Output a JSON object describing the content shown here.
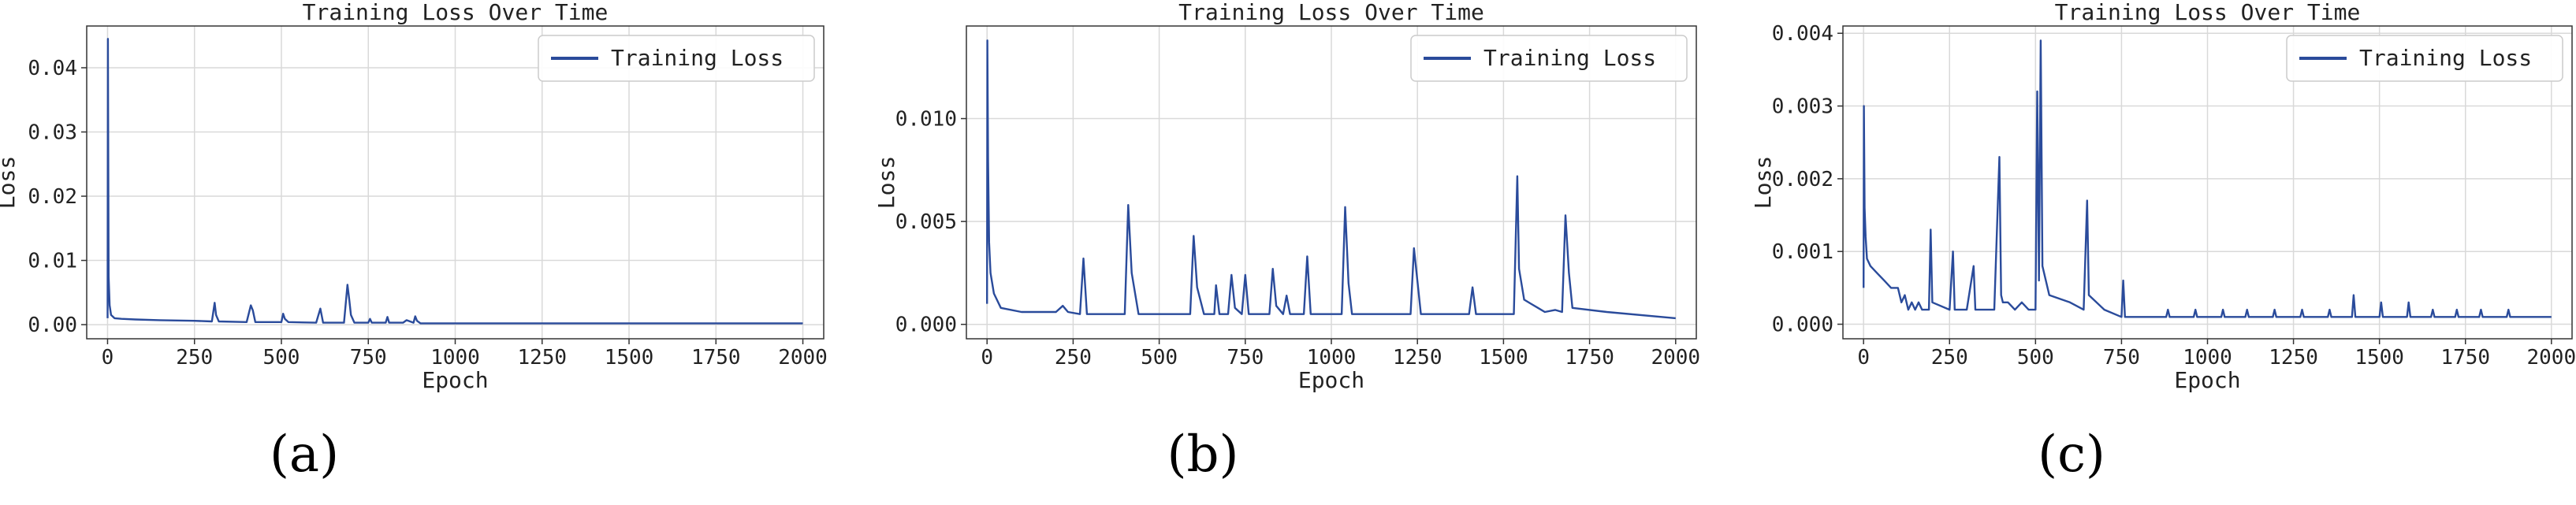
{
  "chart_data": [
    {
      "type": "line",
      "panel_label": "(a)",
      "title": "Training Loss Over Time",
      "xlabel": "Epoch",
      "ylabel": "Loss",
      "xlim": [
        -60,
        2060
      ],
      "ylim": [
        -0.0022,
        0.0465
      ],
      "xticks": [
        0,
        250,
        500,
        750,
        1000,
        1250,
        1500,
        1750,
        2000
      ],
      "xtick_labels": [
        "0",
        "250",
        "500",
        "750",
        "1000",
        "1250",
        "1500",
        "1750",
        "2000"
      ],
      "yticks": [
        0,
        0.01,
        0.02,
        0.03,
        0.04
      ],
      "ytick_labels": [
        "0.00",
        "0.01",
        "0.02",
        "0.03",
        "0.04"
      ],
      "grid": true,
      "legend_position": "top-right",
      "series_color": "#2a4b9b",
      "series": [
        {
          "name": "Training Loss",
          "x": [
            0,
            1,
            3,
            6,
            10,
            20,
            40,
            80,
            150,
            250,
            300,
            308,
            312,
            320,
            400,
            412,
            418,
            425,
            500,
            505,
            510,
            520,
            600,
            612,
            620,
            680,
            690,
            695,
            700,
            710,
            750,
            755,
            760,
            800,
            805,
            810,
            850,
            860,
            880,
            885,
            890,
            900,
            1000,
            1100,
            1200,
            1300,
            1400,
            1500,
            1600,
            1700,
            1800,
            1900,
            2000
          ],
          "y": [
            0.001,
            0.0445,
            0.0075,
            0.003,
            0.0015,
            0.001,
            0.0009,
            0.0008,
            0.0007,
            0.0006,
            0.0005,
            0.0034,
            0.0015,
            0.0005,
            0.0004,
            0.003,
            0.0022,
            0.0004,
            0.0004,
            0.0017,
            0.0009,
            0.0004,
            0.0003,
            0.0025,
            0.0003,
            0.0003,
            0.0062,
            0.004,
            0.0015,
            0.0003,
            0.0003,
            0.0009,
            0.0003,
            0.0003,
            0.0012,
            0.0003,
            0.0003,
            0.0007,
            0.0003,
            0.0013,
            0.0006,
            0.0002,
            0.0002,
            0.0002,
            0.0002,
            0.0002,
            0.0002,
            0.0002,
            0.0002,
            0.0002,
            0.0002,
            0.0002,
            0.0002
          ]
        }
      ]
    },
    {
      "type": "line",
      "panel_label": "(b)",
      "title": "Training Loss Over Time",
      "xlabel": "Epoch",
      "ylabel": "Loss",
      "xlim": [
        -60,
        2060
      ],
      "ylim": [
        -0.0007,
        0.0145
      ],
      "xticks": [
        0,
        250,
        500,
        750,
        1000,
        1250,
        1500,
        1750,
        2000
      ],
      "xtick_labels": [
        "0",
        "250",
        "500",
        "750",
        "1000",
        "1250",
        "1500",
        "1750",
        "2000"
      ],
      "yticks": [
        0,
        0.005,
        0.01
      ],
      "ytick_labels": [
        "0.000",
        "0.005",
        "0.010"
      ],
      "grid": true,
      "legend_position": "top-right",
      "series_color": "#2a4b9b",
      "series": [
        {
          "name": "Training Loss",
          "x": [
            0,
            1,
            3,
            6,
            10,
            20,
            40,
            100,
            200,
            220,
            225,
            235,
            270,
            280,
            290,
            400,
            410,
            420,
            440,
            590,
            600,
            610,
            630,
            660,
            665,
            675,
            700,
            710,
            720,
            740,
            750,
            760,
            820,
            830,
            840,
            860,
            870,
            880,
            900,
            920,
            930,
            940,
            1030,
            1040,
            1050,
            1060,
            1200,
            1230,
            1240,
            1260,
            1400,
            1410,
            1420,
            1450,
            1530,
            1540,
            1545,
            1560,
            1580,
            1600,
            1620,
            1650,
            1670,
            1680,
            1690,
            1700,
            1800,
            2000
          ],
          "y": [
            0.001,
            0.0138,
            0.008,
            0.004,
            0.0025,
            0.0015,
            0.0008,
            0.0006,
            0.0006,
            0.0009,
            0.0008,
            0.0006,
            0.0005,
            0.0032,
            0.0005,
            0.0005,
            0.0058,
            0.0025,
            0.0005,
            0.0005,
            0.0043,
            0.0018,
            0.0005,
            0.0005,
            0.0019,
            0.0005,
            0.0005,
            0.0024,
            0.0008,
            0.0005,
            0.0024,
            0.0005,
            0.0005,
            0.0027,
            0.0009,
            0.0005,
            0.0014,
            0.0005,
            0.0005,
            0.0005,
            0.0033,
            0.0005,
            0.0005,
            0.0057,
            0.002,
            0.0005,
            0.0005,
            0.0005,
            0.0037,
            0.0005,
            0.0005,
            0.0018,
            0.0005,
            0.0005,
            0.0005,
            0.0072,
            0.0027,
            0.0012,
            0.001,
            0.0008,
            0.0006,
            0.0007,
            0.0006,
            0.0053,
            0.0025,
            0.0008,
            0.0006,
            0.0003
          ]
        }
      ]
    },
    {
      "type": "line",
      "panel_label": "(c)",
      "title": "Training Loss Over Time",
      "xlabel": "Epoch",
      "ylabel": "Loss",
      "xlim": [
        -60,
        2060
      ],
      "ylim": [
        -0.0002,
        0.0041
      ],
      "xticks": [
        0,
        250,
        500,
        750,
        1000,
        1250,
        1500,
        1750,
        2000
      ],
      "xtick_labels": [
        "0",
        "250",
        "500",
        "750",
        "1000",
        "1250",
        "1500",
        "1750",
        "2000"
      ],
      "yticks": [
        0,
        0.001,
        0.002,
        0.003,
        0.004
      ],
      "ytick_labels": [
        "0.000",
        "0.001",
        "0.002",
        "0.003",
        "0.004"
      ],
      "grid": true,
      "legend_position": "top-right",
      "series_color": "#2a4b9b",
      "series": [
        {
          "name": "Training Loss",
          "x": [
            0,
            1,
            3,
            6,
            10,
            20,
            40,
            60,
            80,
            100,
            110,
            120,
            130,
            140,
            150,
            160,
            170,
            180,
            190,
            195,
            200,
            250,
            260,
            265,
            300,
            320,
            325,
            380,
            395,
            400,
            405,
            420,
            440,
            460,
            480,
            500,
            505,
            510,
            515,
            520,
            540,
            600,
            640,
            650,
            655,
            700,
            750,
            755,
            760,
            800,
            880,
            885,
            890,
            960,
            965,
            970,
            1040,
            1045,
            1050,
            1110,
            1115,
            1120,
            1190,
            1195,
            1200,
            1270,
            1275,
            1280,
            1350,
            1355,
            1360,
            1420,
            1425,
            1430,
            1500,
            1505,
            1510,
            1580,
            1585,
            1590,
            1650,
            1655,
            1660,
            1720,
            1725,
            1730,
            1790,
            1795,
            1800,
            1870,
            1875,
            1880,
            1950,
            1955,
            1960,
            2000
          ],
          "y": [
            0.0005,
            0.003,
            0.0016,
            0.0012,
            0.0009,
            0.0008,
            0.0007,
            0.0006,
            0.0005,
            0.0005,
            0.0003,
            0.0004,
            0.0002,
            0.0003,
            0.0002,
            0.0003,
            0.0002,
            0.0002,
            0.0002,
            0.0013,
            0.0003,
            0.0002,
            0.001,
            0.0002,
            0.0002,
            0.0008,
            0.0002,
            0.0002,
            0.0023,
            0.0004,
            0.0003,
            0.0003,
            0.0002,
            0.0003,
            0.0002,
            0.0002,
            0.0032,
            0.0006,
            0.0039,
            0.0008,
            0.0004,
            0.0003,
            0.0002,
            0.0017,
            0.0004,
            0.0002,
            0.0001,
            0.0006,
            0.0001,
            0.0001,
            0.0001,
            0.0002,
            0.0001,
            0.0001,
            0.0002,
            0.0001,
            0.0001,
            0.0002,
            0.0001,
            0.0001,
            0.0002,
            0.0001,
            0.0001,
            0.0002,
            0.0001,
            0.0001,
            0.0002,
            0.0001,
            0.0001,
            0.0002,
            0.0001,
            0.0001,
            0.0004,
            0.0001,
            0.0001,
            0.0003,
            0.0001,
            0.0001,
            0.0003,
            0.0001,
            0.0001,
            0.0002,
            0.0001,
            0.0001,
            0.0002,
            0.0001,
            0.0001,
            0.0002,
            0.0001,
            0.0001,
            0.0002,
            0.0001,
            0.0001,
            0.0001,
            0.0001,
            0.0001
          ]
        }
      ]
    }
  ]
}
